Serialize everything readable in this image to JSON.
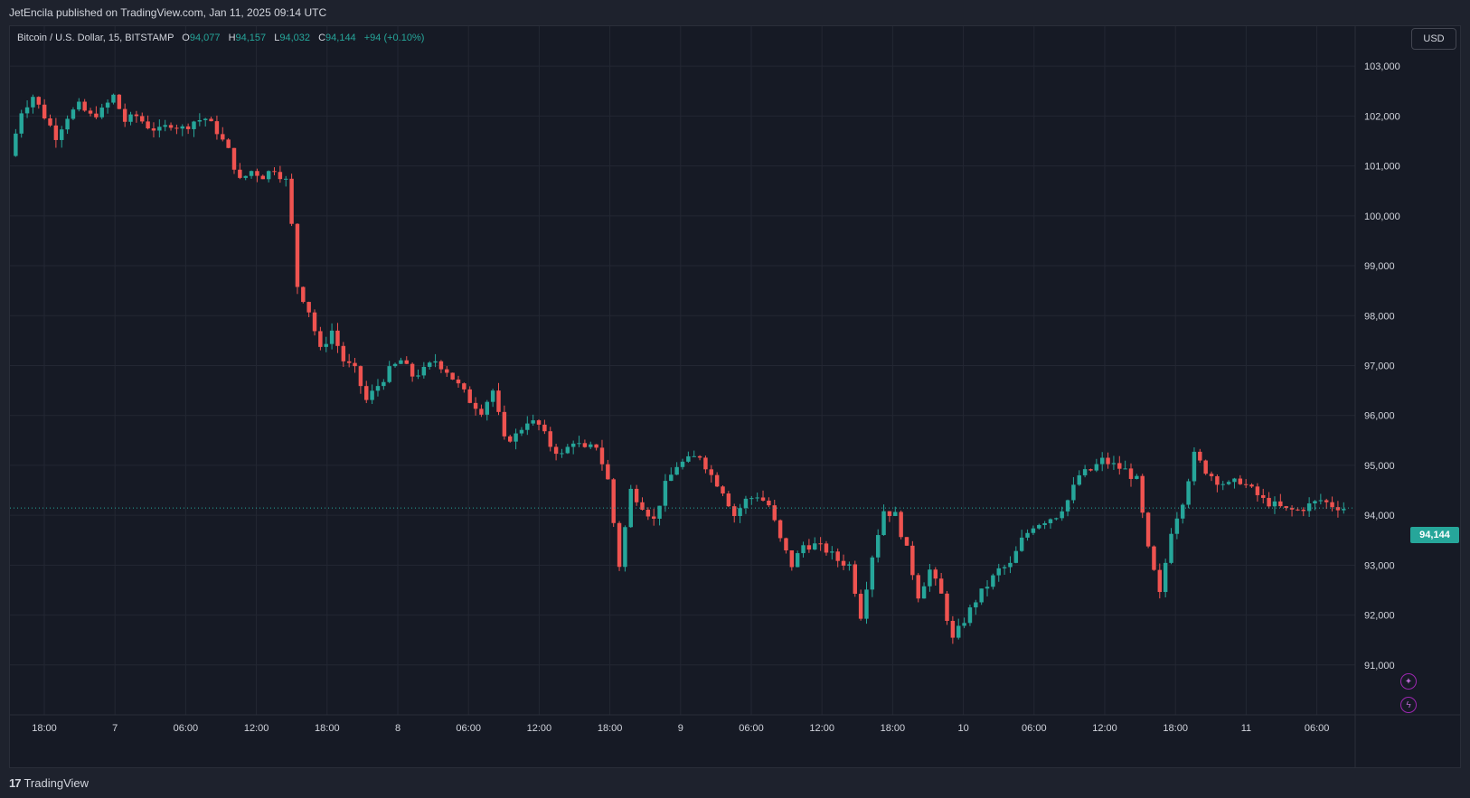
{
  "header": {
    "publisher": "JetEncila published on TradingView.com, Jan 11, 2025 09:14 UTC"
  },
  "legend": {
    "symbol": "Bitcoin / U.S. Dollar, 15, BITSTAMP",
    "o_label": "O",
    "o_value": "94,077",
    "h_label": "H",
    "h_value": "94,157",
    "l_label": "L",
    "l_value": "94,032",
    "c_label": "C",
    "c_value": "94,144",
    "change": "+94 (+0.10%)"
  },
  "toolbar": {
    "currency": "USD"
  },
  "last_price": "94,144",
  "footer": {
    "logo_mark": "17",
    "brand": "TradingView"
  },
  "colors": {
    "up": "#26a69a",
    "down": "#ef5350",
    "background": "#161a25",
    "grid": "#232733",
    "axis_text": "#d1d4dc",
    "last_price_line": "#26a69a"
  },
  "icons": [
    "sparkle-icon",
    "lightning-icon"
  ],
  "chart_data": {
    "type": "candlestick",
    "symbol": "BTCUSD",
    "interval": "15",
    "exchange": "BITSTAMP",
    "x_tick_labels": [
      "18:00",
      "7",
      "06:00",
      "12:00",
      "18:00",
      "8",
      "06:00",
      "12:00",
      "18:00",
      "9",
      "06:00",
      "12:00",
      "18:00",
      "10",
      "06:00",
      "12:00",
      "18:00",
      "11",
      "06:00"
    ],
    "y_tick_labels": [
      "103,000",
      "102,000",
      "101,000",
      "100,000",
      "99,000",
      "98,000",
      "97,000",
      "96,000",
      "95,000",
      "94,000",
      "93,000",
      "92,000",
      "91,000"
    ],
    "y_ticks": [
      103000,
      102000,
      101000,
      100000,
      99000,
      98000,
      97000,
      96000,
      95000,
      94000,
      93000,
      92000,
      91000
    ],
    "ylim": [
      90000,
      103800
    ],
    "last_price": 94144,
    "grid": true,
    "series": [
      {
        "name": "BTCUSD",
        "points": [
          [
            0,
            101200
          ],
          [
            2,
            102100
          ],
          [
            4,
            102400
          ],
          [
            6,
            102000
          ],
          [
            8,
            101600
          ],
          [
            10,
            102000
          ],
          [
            12,
            102200
          ],
          [
            14,
            102000
          ],
          [
            16,
            102100
          ],
          [
            18,
            102400
          ],
          [
            20,
            101900
          ],
          [
            22,
            102000
          ],
          [
            24,
            101800
          ],
          [
            26,
            101700
          ],
          [
            28,
            101850
          ],
          [
            30,
            101750
          ],
          [
            32,
            101900
          ],
          [
            34,
            101950
          ],
          [
            36,
            101700
          ],
          [
            38,
            101300
          ],
          [
            40,
            100700
          ],
          [
            42,
            100900
          ],
          [
            44,
            100800
          ],
          [
            46,
            100950
          ],
          [
            48,
            100700
          ],
          [
            49,
            99800
          ],
          [
            50,
            98600
          ],
          [
            52,
            98100
          ],
          [
            54,
            97300
          ],
          [
            56,
            97700
          ],
          [
            58,
            97100
          ],
          [
            60,
            96900
          ],
          [
            62,
            96300
          ],
          [
            64,
            96600
          ],
          [
            66,
            96900
          ],
          [
            68,
            97100
          ],
          [
            70,
            96800
          ],
          [
            72,
            96900
          ],
          [
            74,
            97100
          ],
          [
            76,
            96900
          ],
          [
            78,
            96600
          ],
          [
            80,
            96300
          ],
          [
            82,
            96100
          ],
          [
            84,
            96500
          ],
          [
            86,
            95500
          ],
          [
            88,
            95600
          ],
          [
            90,
            95900
          ],
          [
            92,
            95800
          ],
          [
            94,
            95400
          ],
          [
            96,
            95200
          ],
          [
            98,
            95500
          ],
          [
            100,
            95300
          ],
          [
            102,
            95400
          ],
          [
            104,
            94700
          ],
          [
            106,
            93000
          ],
          [
            108,
            94500
          ],
          [
            110,
            94200
          ],
          [
            112,
            93900
          ],
          [
            114,
            94600
          ],
          [
            116,
            95000
          ],
          [
            118,
            95100
          ],
          [
            120,
            95200
          ],
          [
            122,
            94800
          ],
          [
            124,
            94500
          ],
          [
            126,
            94000
          ],
          [
            128,
            94300
          ],
          [
            130,
            94400
          ],
          [
            132,
            94200
          ],
          [
            134,
            93500
          ],
          [
            136,
            93000
          ],
          [
            138,
            93400
          ],
          [
            140,
            93400
          ],
          [
            142,
            93300
          ],
          [
            144,
            93100
          ],
          [
            146,
            93000
          ],
          [
            148,
            92000
          ],
          [
            150,
            93200
          ],
          [
            152,
            94100
          ],
          [
            154,
            94000
          ],
          [
            156,
            93300
          ],
          [
            158,
            92400
          ],
          [
            160,
            92900
          ],
          [
            162,
            92400
          ],
          [
            164,
            91500
          ],
          [
            166,
            91900
          ],
          [
            168,
            92300
          ],
          [
            170,
            92600
          ],
          [
            172,
            92900
          ],
          [
            174,
            93000
          ],
          [
            176,
            93500
          ],
          [
            178,
            93800
          ],
          [
            180,
            93900
          ],
          [
            182,
            94000
          ],
          [
            184,
            94300
          ],
          [
            186,
            94800
          ],
          [
            188,
            94900
          ],
          [
            190,
            95100
          ],
          [
            192,
            95000
          ],
          [
            194,
            94900
          ],
          [
            196,
            94700
          ],
          [
            198,
            93300
          ],
          [
            200,
            92400
          ],
          [
            202,
            93700
          ],
          [
            204,
            94300
          ],
          [
            206,
            95200
          ],
          [
            208,
            94900
          ],
          [
            210,
            94700
          ],
          [
            212,
            94600
          ],
          [
            214,
            94700
          ],
          [
            216,
            94500
          ],
          [
            218,
            94300
          ],
          [
            220,
            94200
          ],
          [
            222,
            94100
          ],
          [
            224,
            94100
          ],
          [
            226,
            94200
          ],
          [
            228,
            94300
          ],
          [
            230,
            94200
          ],
          [
            232,
            94144
          ]
        ]
      }
    ]
  }
}
